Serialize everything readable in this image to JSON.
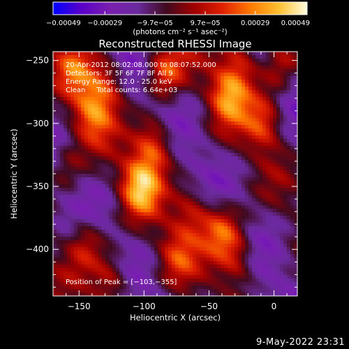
{
  "chart_data": {
    "type": "heatmap",
    "title": "Reconstructed RHESSI Image",
    "xlabel": "Heliocentric X (arcsec)",
    "ylabel": "Heliocentric Y (arcsec)",
    "xlim": [
      -170,
      18
    ],
    "ylim": [
      -437,
      -243
    ],
    "x_ticks": [
      -150,
      -100,
      -50,
      0
    ],
    "x_tick_labels": [
      "−150",
      "−100",
      "−50",
      "0"
    ],
    "y_ticks": [
      -250,
      -300,
      -350,
      -400
    ],
    "y_tick_labels": [
      "−250",
      "−300",
      "−350",
      "−400"
    ],
    "annotations": [
      "20-Apr-2012 08:02:08.000 to 08:07:52.000",
      "Detectors: 3F 5F 6F 7F 8F All 9",
      "Energy Range: 12.0 - 25.0 keV",
      "Clean     Total counts: 6.64e+03"
    ],
    "peak_label": "Position of Peak = [−103,−355]",
    "peak_position": [
      -103,
      -355
    ],
    "colorbar": {
      "min": -0.00049,
      "max": 0.00049,
      "ticks": [
        -0.00049,
        -0.00029,
        -9.7e-05,
        9.7e-05,
        0.00029,
        0.00049
      ],
      "tick_labels": [
        "−0.00049",
        "−0.00029",
        "−9.7e−05",
        "9.7e−05",
        "0.00029",
        "0.00049"
      ],
      "unit_label": "(photons cm⁻² s⁻¹ asec⁻²)",
      "colors": [
        "#0000ff",
        "#5a00c8",
        "#7a1fb0",
        "#6a2a9c",
        "#400a20",
        "#a00000",
        "#e02000",
        "#ff7a00",
        "#ffc030",
        "#fffde0"
      ]
    },
    "blobs": [
      {
        "x": -140,
        "y": -292,
        "value": 0.00036
      },
      {
        "x": -128,
        "y": -268,
        "value": 0.0003
      },
      {
        "x": -153,
        "y": -255,
        "value": 0.00028
      },
      {
        "x": -103,
        "y": -350,
        "value": 0.00049
      },
      {
        "x": -92,
        "y": -317,
        "value": 0.0004
      },
      {
        "x": -84,
        "y": -258,
        "value": 0.00036
      },
      {
        "x": -35,
        "y": -278,
        "value": 0.0004
      },
      {
        "x": -25,
        "y": -250,
        "value": 0.0003
      },
      {
        "x": -8,
        "y": -300,
        "value": 0.00032
      },
      {
        "x": 4,
        "y": -252,
        "value": 0.00028
      },
      {
        "x": -40,
        "y": -385,
        "value": 0.00038
      },
      {
        "x": -28,
        "y": -408,
        "value": 0.0003
      },
      {
        "x": -62,
        "y": -370,
        "value": 0.00028
      },
      {
        "x": -145,
        "y": -395,
        "value": 0.00028
      },
      {
        "x": -125,
        "y": -425,
        "value": 0.00032
      },
      {
        "x": -75,
        "y": -405,
        "value": 0.00024
      },
      {
        "x": -160,
        "y": -335,
        "value": 0.0002
      }
    ]
  },
  "footer": {
    "date": "9-May-2022 23:31"
  }
}
